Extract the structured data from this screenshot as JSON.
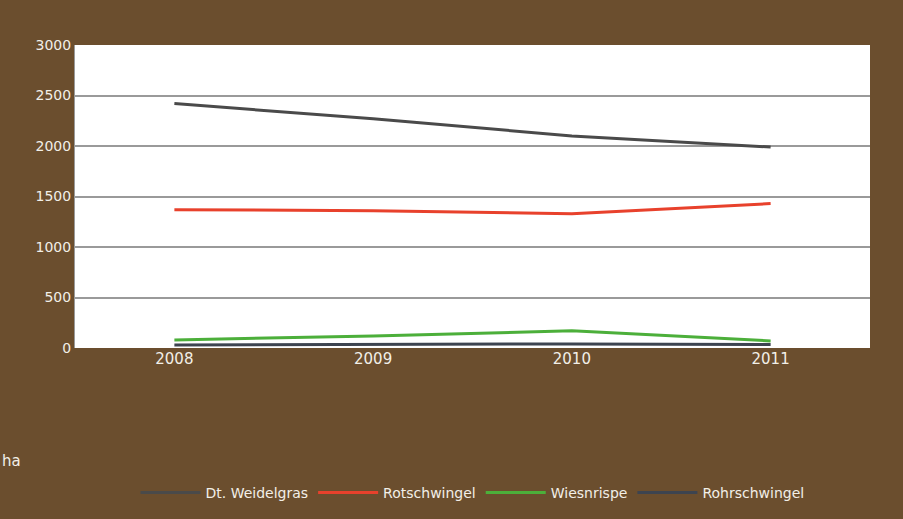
{
  "chart_data": {
    "type": "line",
    "ylabel": "ha",
    "categories": [
      "2008",
      "2009",
      "2010",
      "2011"
    ],
    "series": [
      {
        "name": "Dt. Weidelgras",
        "color": "#4a4a4a",
        "values": [
          2420,
          2270,
          2100,
          1990
        ]
      },
      {
        "name": "Rotschwingel",
        "color": "#e8412c",
        "values": [
          1370,
          1360,
          1330,
          1430
        ]
      },
      {
        "name": "Wiesnrispe",
        "color": "#4caf3a",
        "values": [
          80,
          120,
          170,
          70
        ]
      },
      {
        "name": "Rohrschwingel",
        "color": "#3d4450",
        "values": [
          30,
          35,
          40,
          35
        ]
      }
    ],
    "ylim": [
      0,
      3000
    ],
    "yticks": [
      0,
      500,
      1000,
      1500,
      2000,
      2500,
      3000
    ],
    "grid": true,
    "legend": "bottom"
  }
}
